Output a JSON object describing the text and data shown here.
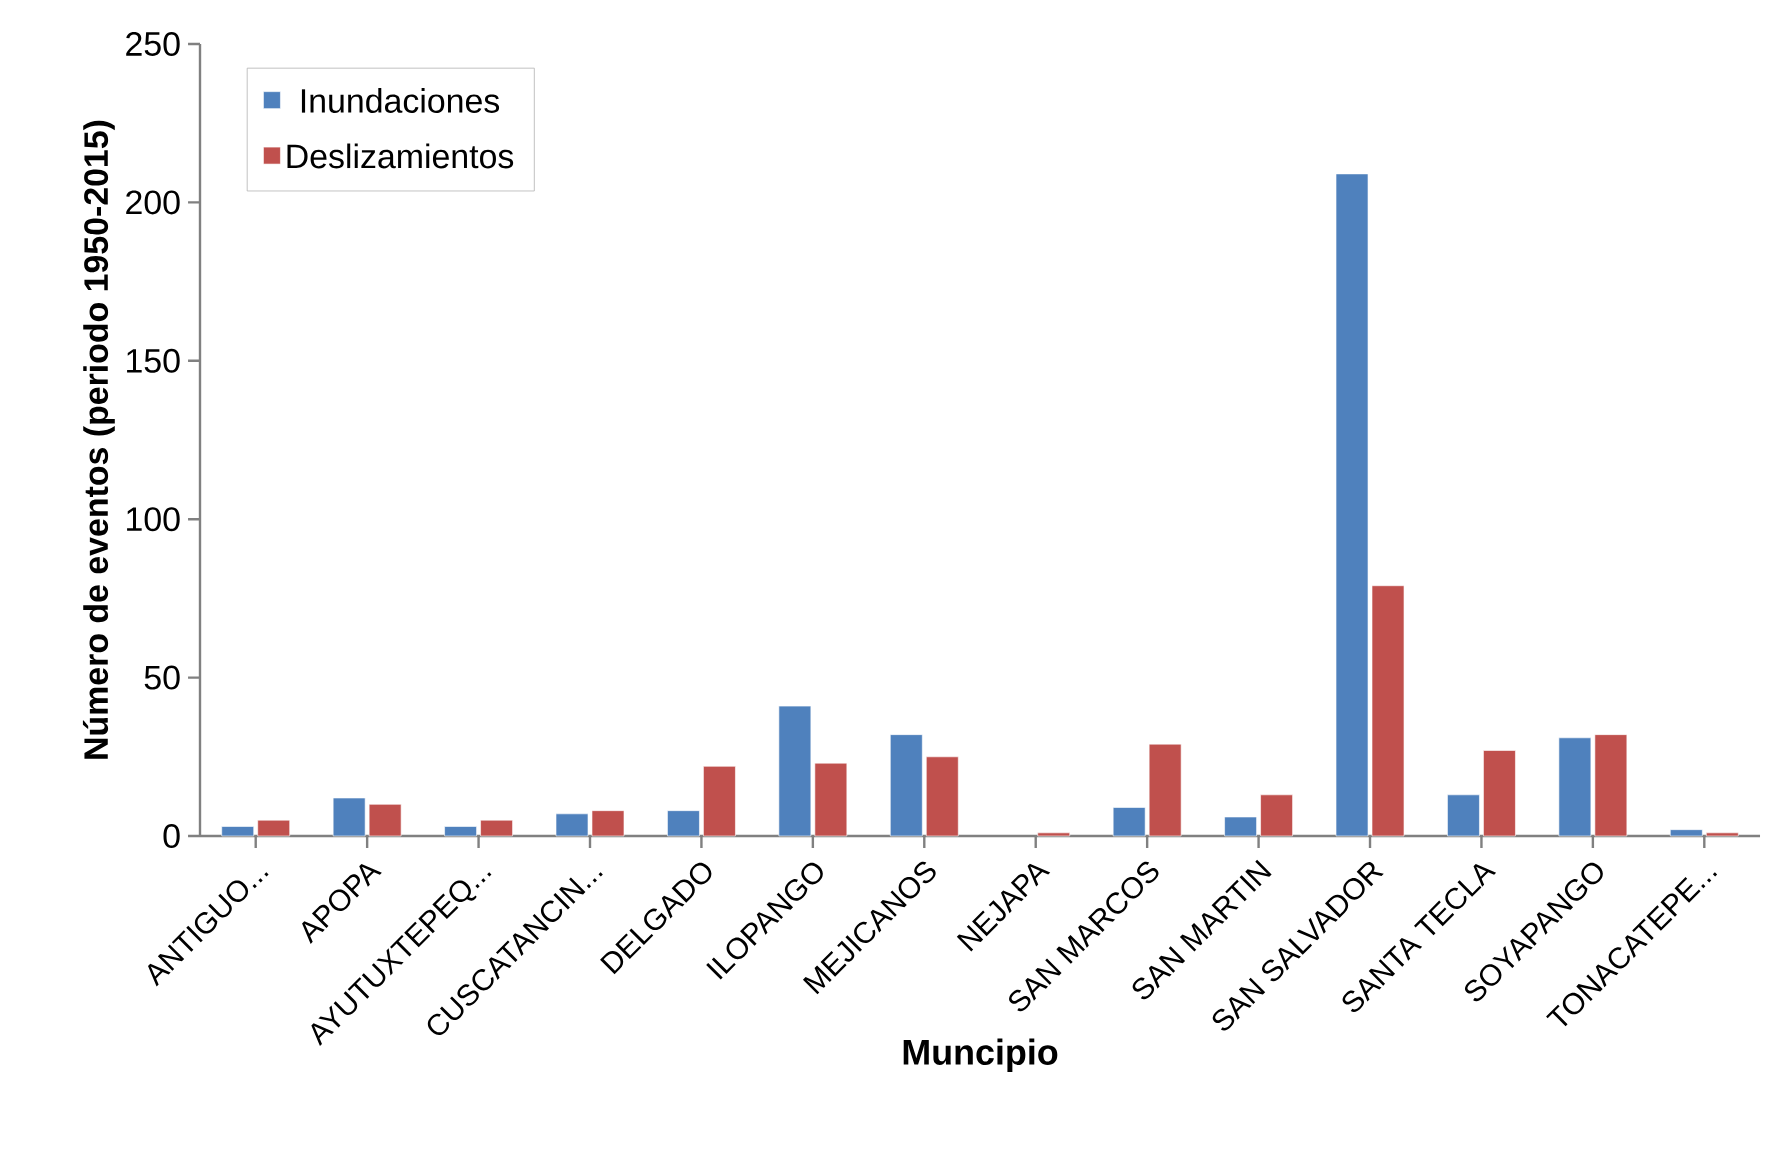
{
  "chart_data": {
    "type": "bar",
    "xlabel": "Muncipio",
    "ylabel": "Número de eventos (periodo 1950-2015)",
    "categories": [
      "ANTIGUO...",
      "APOPA",
      "AYUTUXTEPEQ...",
      "CUSCATANCIN...",
      "DELGADO",
      "ILOPANGO",
      "MEJICANOS",
      "NEJAPA",
      "SAN MARCOS",
      "SAN MARTIN",
      "SAN SALVADOR",
      "SANTA TECLA",
      "SOYAPANGO",
      "TONACATEPE..."
    ],
    "series": [
      {
        "name": "Inundaciones",
        "color": "#4f81bd",
        "values": [
          3,
          12,
          3,
          7,
          8,
          41,
          32,
          null,
          9,
          6,
          209,
          13,
          31,
          2
        ]
      },
      {
        "name": "Deslizamientos",
        "color": "#c0504d",
        "values": [
          5,
          10,
          5,
          8,
          22,
          23,
          25,
          1,
          29,
          13,
          79,
          27,
          32,
          1
        ]
      }
    ],
    "ylim": [
      0,
      250
    ],
    "yticks": [
      0,
      50,
      100,
      150,
      200,
      250
    ],
    "grid": false,
    "legend": "top left"
  }
}
